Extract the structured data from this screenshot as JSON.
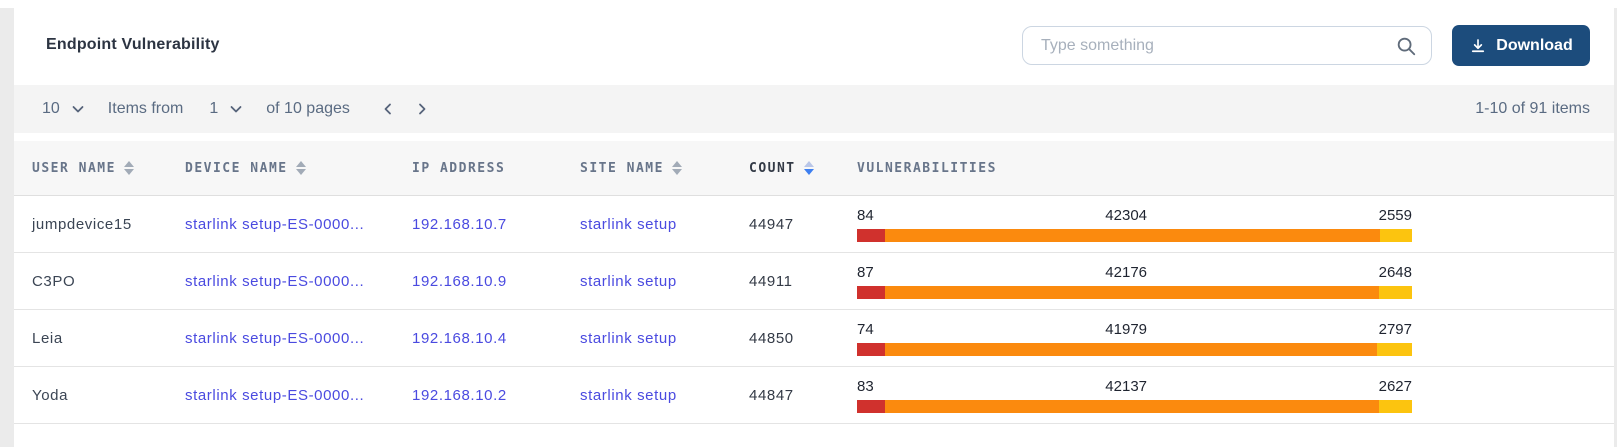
{
  "header": {
    "title": "Endpoint Vulnerability",
    "search_placeholder": "Type something",
    "download_label": "Download"
  },
  "pagination": {
    "page_size": "10",
    "items_from_label": "Items from",
    "page_number": "1",
    "pages_label": "of 10 pages",
    "range_label": "1-10 of 91 items"
  },
  "table": {
    "columns": [
      {
        "label": "USER NAME",
        "sortable": true,
        "sort": "none"
      },
      {
        "label": "DEVICE NAME",
        "sortable": true,
        "sort": "none"
      },
      {
        "label": "IP ADDRESS",
        "sortable": false,
        "sort": "none"
      },
      {
        "label": "SITE NAME",
        "sortable": true,
        "sort": "none"
      },
      {
        "label": "COUNT",
        "sortable": true,
        "sort": "desc"
      },
      {
        "label": "VULNERABILITIES",
        "sortable": false,
        "sort": "none"
      }
    ],
    "rows": [
      {
        "user_name": "jumpdevice15",
        "device_name": "starlink setup-ES-0000...",
        "ip_address": "192.168.10.7",
        "site_name": "starlink setup",
        "count": "44947",
        "vulnerabilities": {
          "critical": 84,
          "high": 42304,
          "medium": 2559
        }
      },
      {
        "user_name": "C3PO",
        "device_name": "starlink setup-ES-0000...",
        "ip_address": "192.168.10.9",
        "site_name": "starlink setup",
        "count": "44911",
        "vulnerabilities": {
          "critical": 87,
          "high": 42176,
          "medium": 2648
        }
      },
      {
        "user_name": "Leia",
        "device_name": "starlink setup-ES-0000...",
        "ip_address": "192.168.10.4",
        "site_name": "starlink setup",
        "count": "44850",
        "vulnerabilities": {
          "critical": 74,
          "high": 41979,
          "medium": 2797
        }
      },
      {
        "user_name": "Yoda",
        "device_name": "starlink setup-ES-0000...",
        "ip_address": "192.168.10.2",
        "site_name": "starlink setup",
        "count": "44847",
        "vulnerabilities": {
          "critical": 83,
          "high": 42137,
          "medium": 2627
        }
      }
    ]
  },
  "colors": {
    "critical": "#d0312d",
    "high": "#fb8a0e",
    "medium": "#fcc40f",
    "link": "#4a4ae0",
    "sort_active": "#3d7ff0",
    "download_bg": "#1c4c7c"
  }
}
